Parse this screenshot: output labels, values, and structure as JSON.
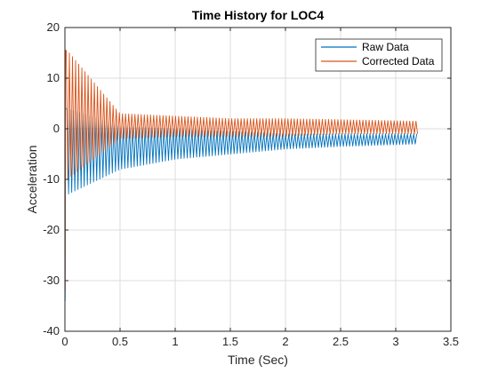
{
  "chart_data": {
    "type": "line",
    "title": "Time History for LOC4",
    "xlabel": "Time (Sec)",
    "ylabel": "Acceleration",
    "xlim": [
      0,
      3.5
    ],
    "ylim": [
      -40,
      20
    ],
    "x_ticks": [
      0,
      0.5,
      1,
      1.5,
      2,
      2.5,
      3,
      3.5
    ],
    "x_tick_labels": [
      "0",
      "0.5",
      "1",
      "1.5",
      "2",
      "2.5",
      "3",
      "3.5"
    ],
    "y_ticks": [
      -40,
      -30,
      -20,
      -10,
      0,
      10,
      20
    ],
    "y_tick_labels": [
      "-40",
      "-30",
      "-20",
      "-10",
      "0",
      "10",
      "20"
    ],
    "grid": true,
    "legend_position": "top-right",
    "x_range": [
      0,
      3.2
    ],
    "oscillation_cycles": 113,
    "series": [
      {
        "name": "Raw Data",
        "color": "#0072BD",
        "initial_spike": -34,
        "envelope_points": [
          {
            "t": 0.02,
            "upper": 4,
            "lower": -13
          },
          {
            "t": 0.5,
            "upper": 0.5,
            "lower": -8
          },
          {
            "t": 1.0,
            "upper": 0,
            "lower": -6
          },
          {
            "t": 1.5,
            "upper": -0.5,
            "lower": -5
          },
          {
            "t": 2.0,
            "upper": -1,
            "lower": -4
          },
          {
            "t": 2.5,
            "upper": -1,
            "lower": -3.5
          },
          {
            "t": 3.2,
            "upper": -1,
            "lower": -3
          }
        ]
      },
      {
        "name": "Corrected Data",
        "color": "#D95319",
        "initial_spike": -32,
        "envelope_points": [
          {
            "t": 0.02,
            "upper": 15.5,
            "lower": -10
          },
          {
            "t": 0.5,
            "upper": 3,
            "lower": -2
          },
          {
            "t": 1.0,
            "upper": 2.5,
            "lower": -1.5
          },
          {
            "t": 1.5,
            "upper": 2,
            "lower": -1.5
          },
          {
            "t": 2.0,
            "upper": 2,
            "lower": -1.5
          },
          {
            "t": 2.5,
            "upper": 1.8,
            "lower": -1
          },
          {
            "t": 3.2,
            "upper": 1.5,
            "lower": -1
          }
        ]
      }
    ]
  }
}
